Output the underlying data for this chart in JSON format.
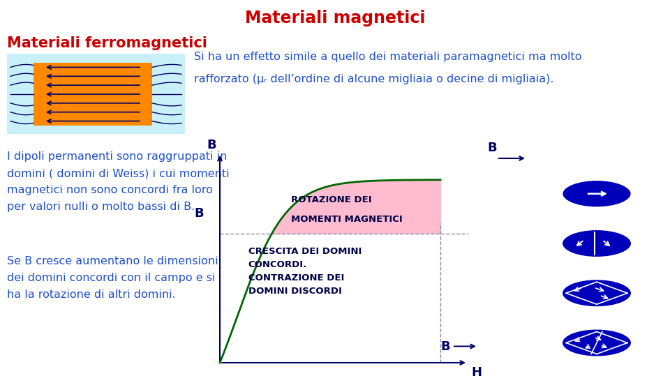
{
  "title": "Materiali magnetici",
  "title_color": "#CC0000",
  "title_fontsize": 17,
  "subtitle": "Materiali ferromagnetici",
  "subtitle_color": "#CC0000",
  "subtitle_fontsize": 15,
  "bg_color": "#FFFFFF",
  "text_color_blue": "#1C4ECC",
  "text_color_dark": "#000044",
  "desc_line1": "Si ha un effetto simile a quello dei materiali paramagnetici ma molto",
  "desc_line2": "rafforzato (μᵣ dell’ordine di alcune migliaia o decine di migliaia).",
  "body_text1_lines": [
    "I dipoli permanenti sono raggruppati in",
    "domini ( domini di Weiss) i cui momenti",
    "magnetici non sono concordi fra loro",
    "per valori nulli o molto bassi di B."
  ],
  "body_text2_lines": [
    "Se B cresce aumentano le dimensioni",
    "dei domini concordi con il campo e si",
    "ha la rotazione di altri domini."
  ],
  "graph_label_B": "B",
  "graph_label_H": "H",
  "graph_text_top_line1": "ROTAZIONE DEI",
  "graph_text_top_line2": "MOMENTI MAGNETICI",
  "graph_text_bottom": "CRESCITA DEI DOMINI\nCONCORDI.\nCONTRAZIONE DEI\nDOMINI DISCORDI",
  "curve_color": "#006600",
  "fill_color": "#FFB0C8",
  "dashed_color": "#8888AA",
  "arrow_color": "#000066",
  "ellipse_fill": "#0000BB",
  "light_blue_box": "#C8F0F8",
  "orange_rect": "#FF8800"
}
